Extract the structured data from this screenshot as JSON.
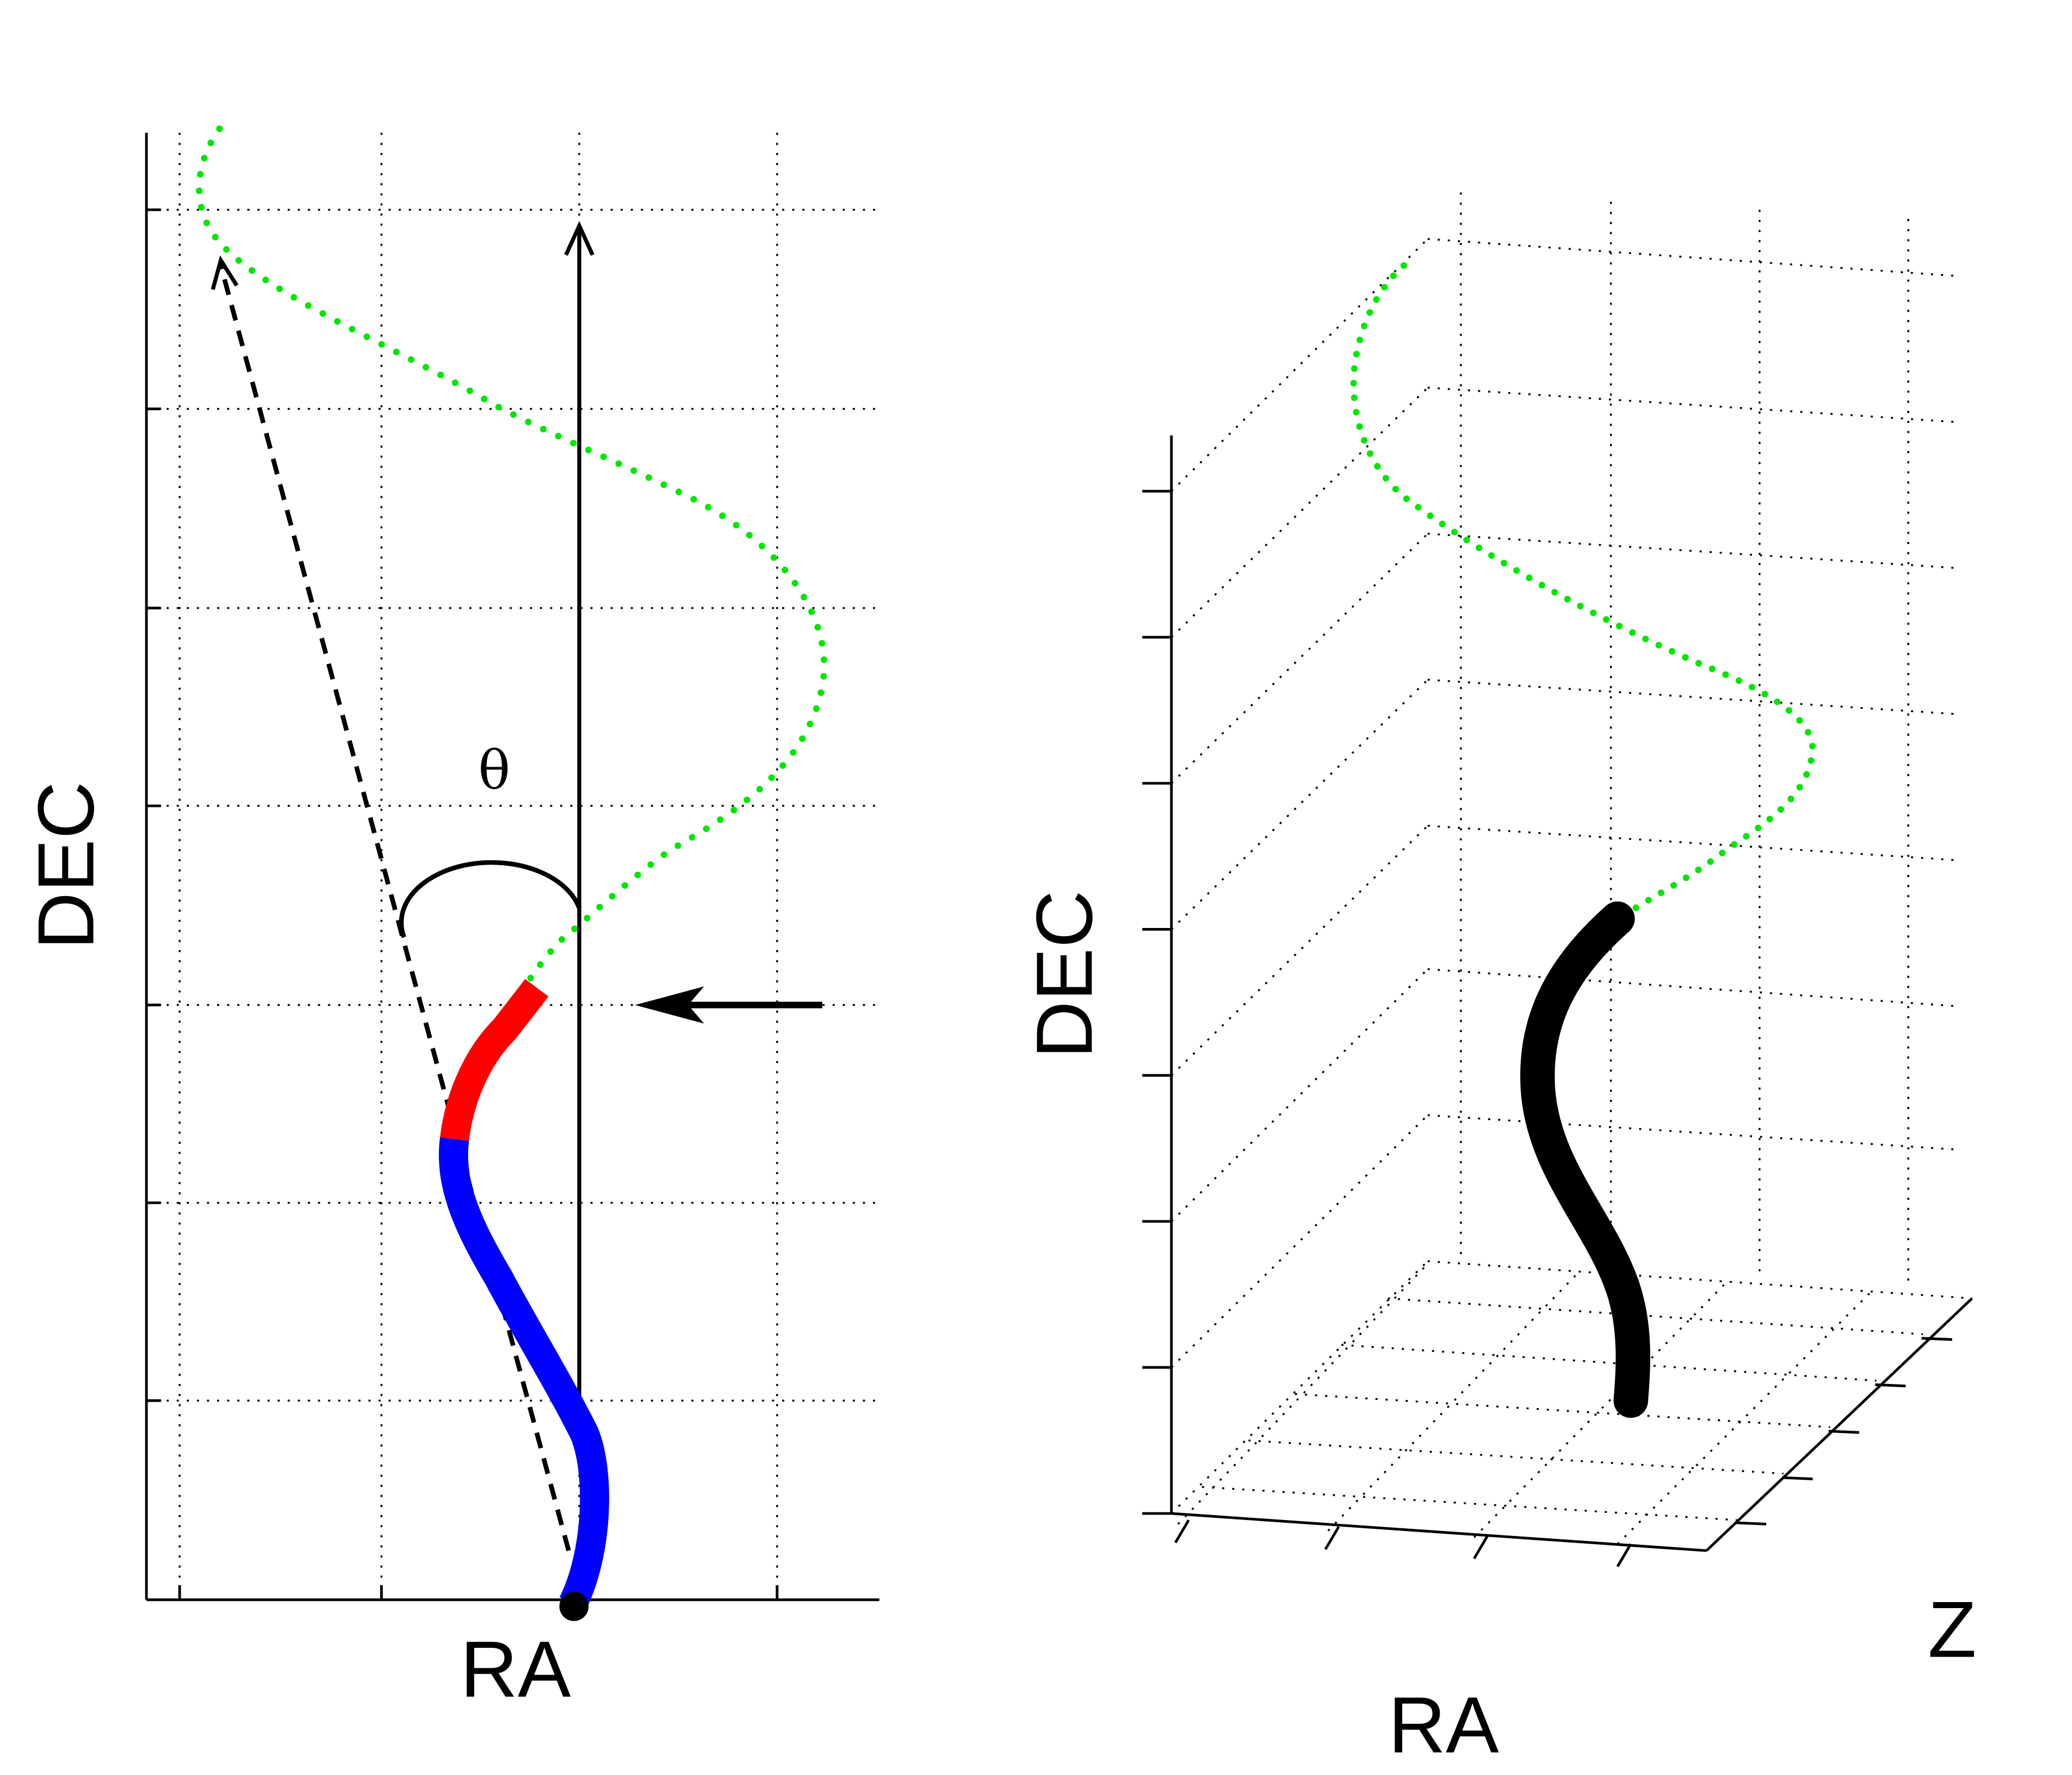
{
  "left_panel": {
    "xlabel": "RA",
    "ylabel": "DEC",
    "angle_label": "θ"
  },
  "right_panel": {
    "xlabel": "RA",
    "ylabel": "DEC",
    "zlabel": "Z"
  },
  "colors": {
    "axes": "#000000",
    "grid": "#000000",
    "green_trajectory": "#00e600",
    "red_segment": "#ff0000",
    "blue_segment": "#0000ff",
    "black_segment": "#000000",
    "arrows": "#000000"
  }
}
